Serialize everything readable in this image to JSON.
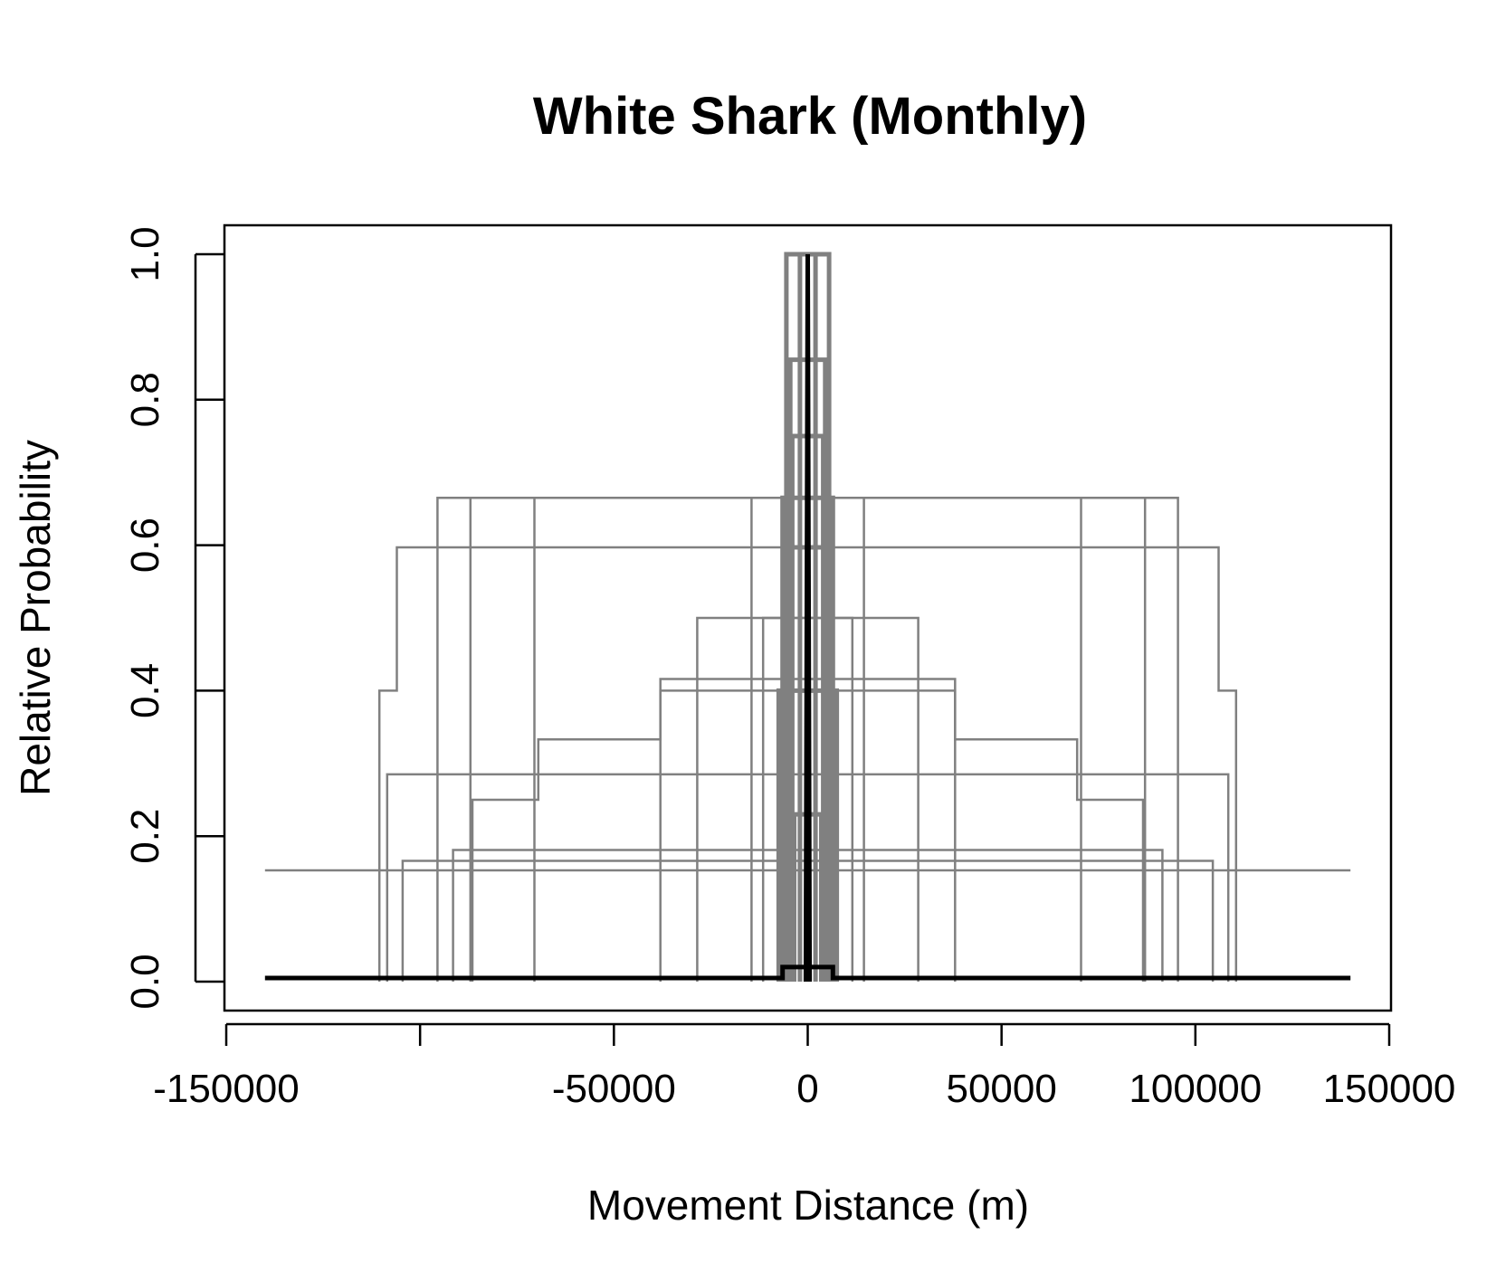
{
  "chart_data": {
    "type": "line",
    "title": "White Shark (Monthly)",
    "xlabel": "Movement Distance (m)",
    "ylabel": "Relative Probability",
    "xlim": [
      -150000,
      150000
    ],
    "ylim": [
      0,
      1
    ],
    "x_ticks": [
      -150000,
      -100000,
      -50000,
      0,
      50000,
      100000,
      150000
    ],
    "x_tick_labels": [
      "-150000",
      "",
      "-50000",
      "0",
      "50000",
      "100000",
      "150000"
    ],
    "y_ticks": [
      0,
      0.2,
      0.4,
      0.6,
      0.8,
      1.0
    ],
    "y_tick_labels": [
      "0.0",
      "0.2",
      "0.4",
      "0.6",
      "0.8",
      "1.0"
    ],
    "grid": false,
    "legend": "none",
    "colors": {
      "individual": "#808080",
      "mean": "#000000"
    },
    "series": [
      {
        "role": "individual",
        "steps": [
          [
            -140000,
            0.153
          ],
          [
            140000,
            0.153
          ]
        ]
      },
      {
        "role": "individual",
        "steps": [
          [
            -110500,
            0
          ],
          [
            -110500,
            0.4
          ],
          [
            -106000,
            0.4
          ],
          [
            -106000,
            0.597
          ],
          [
            -106000,
            0.597
          ],
          [
            106000,
            0.597
          ],
          [
            106000,
            0.4
          ],
          [
            110500,
            0.4
          ],
          [
            110500,
            0
          ]
        ]
      },
      {
        "role": "individual",
        "steps": [
          [
            -95500,
            0
          ],
          [
            -95500,
            0.665
          ],
          [
            -95500,
            0.665
          ],
          [
            95500,
            0.665
          ],
          [
            95500,
            0
          ]
        ]
      },
      {
        "role": "individual",
        "steps": [
          [
            -108500,
            0
          ],
          [
            -108500,
            0.285
          ],
          [
            108500,
            0.285
          ],
          [
            108500,
            0
          ]
        ]
      },
      {
        "role": "individual",
        "steps": [
          [
            -104500,
            0
          ],
          [
            -104500,
            0.166
          ],
          [
            104500,
            0.166
          ],
          [
            104500,
            0
          ]
        ]
      },
      {
        "role": "individual",
        "steps": [
          [
            -91500,
            0
          ],
          [
            -91500,
            0.181
          ],
          [
            91500,
            0.181
          ],
          [
            91500,
            0
          ]
        ]
      },
      {
        "role": "individual",
        "steps": [
          [
            -87000,
            0
          ],
          [
            -87000,
            0.665
          ],
          [
            87000,
            0.665
          ],
          [
            87000,
            0
          ]
        ]
      },
      {
        "role": "individual",
        "steps": [
          [
            -86500,
            0
          ],
          [
            -86500,
            0.25
          ],
          [
            -69500,
            0.25
          ],
          [
            -69500,
            0.333
          ],
          [
            -38000,
            0.333
          ],
          [
            -38000,
            0.416
          ],
          [
            38000,
            0.416
          ],
          [
            38000,
            0.333
          ],
          [
            69500,
            0.333
          ],
          [
            69500,
            0.25
          ],
          [
            86500,
            0.25
          ],
          [
            86500,
            0
          ]
        ]
      },
      {
        "role": "individual",
        "steps": [
          [
            -70500,
            0
          ],
          [
            -70500,
            0.665
          ],
          [
            70500,
            0.665
          ],
          [
            70500,
            0
          ]
        ]
      },
      {
        "role": "individual",
        "steps": [
          [
            -28500,
            0
          ],
          [
            -28500,
            0.5
          ],
          [
            28500,
            0.5
          ],
          [
            28500,
            0
          ]
        ]
      },
      {
        "role": "individual",
        "steps": [
          [
            -38000,
            0
          ],
          [
            -38000,
            0.4
          ],
          [
            38000,
            0.4
          ],
          [
            38000,
            0
          ]
        ]
      },
      {
        "role": "individual",
        "steps": [
          [
            -14500,
            0
          ],
          [
            -14500,
            0.665
          ],
          [
            14500,
            0.665
          ],
          [
            14500,
            0
          ]
        ]
      },
      {
        "role": "individual",
        "steps": [
          [
            -11500,
            0
          ],
          [
            -11500,
            0.5
          ],
          [
            11500,
            0.5
          ],
          [
            11500,
            0
          ]
        ]
      },
      {
        "role": "individual",
        "steps": [
          [
            -7500,
            0
          ],
          [
            -7500,
            0.4
          ],
          [
            7500,
            0.4
          ],
          [
            7500,
            0
          ]
        ]
      },
      {
        "role": "individual",
        "steps": [
          [
            -5000,
            0
          ],
          [
            -5000,
            0.597
          ],
          [
            5000,
            0.597
          ],
          [
            5000,
            0
          ]
        ]
      },
      {
        "role": "individual",
        "steps": [
          [
            -6500,
            0
          ],
          [
            -6500,
            0.665
          ],
          [
            6500,
            0.665
          ],
          [
            6500,
            0
          ]
        ]
      },
      {
        "role": "individual",
        "steps": [
          [
            -4500,
            0
          ],
          [
            -4500,
            0.855
          ],
          [
            4500,
            0.855
          ],
          [
            4500,
            0
          ]
        ]
      },
      {
        "role": "individual",
        "steps": [
          [
            -4000,
            0
          ],
          [
            -4000,
            0.75
          ],
          [
            4000,
            0.75
          ],
          [
            4000,
            0
          ]
        ]
      },
      {
        "role": "individual",
        "steps": [
          [
            -3500,
            0
          ],
          [
            -3500,
            0.23
          ],
          [
            3500,
            0.23
          ],
          [
            3500,
            0
          ]
        ]
      },
      {
        "role": "individual",
        "steps": [
          [
            -5500,
            0
          ],
          [
            -5500,
            1.0
          ],
          [
            5500,
            1.0
          ],
          [
            5500,
            0
          ]
        ]
      },
      {
        "role": "individual",
        "steps": [
          [
            -2000,
            0
          ],
          [
            -2000,
            1.0
          ],
          [
            2000,
            1.0
          ],
          [
            2000,
            0
          ]
        ]
      },
      {
        "role": "mean",
        "steps": [
          [
            -140000,
            0.005
          ],
          [
            -6500,
            0.005
          ],
          [
            -6500,
            0.02
          ],
          [
            6500,
            0.02
          ],
          [
            6500,
            0.005
          ],
          [
            140000,
            0.005
          ]
        ]
      },
      {
        "role": "mean",
        "steps": [
          [
            -500,
            0
          ],
          [
            0,
            1.0
          ],
          [
            500,
            0
          ]
        ]
      }
    ]
  }
}
